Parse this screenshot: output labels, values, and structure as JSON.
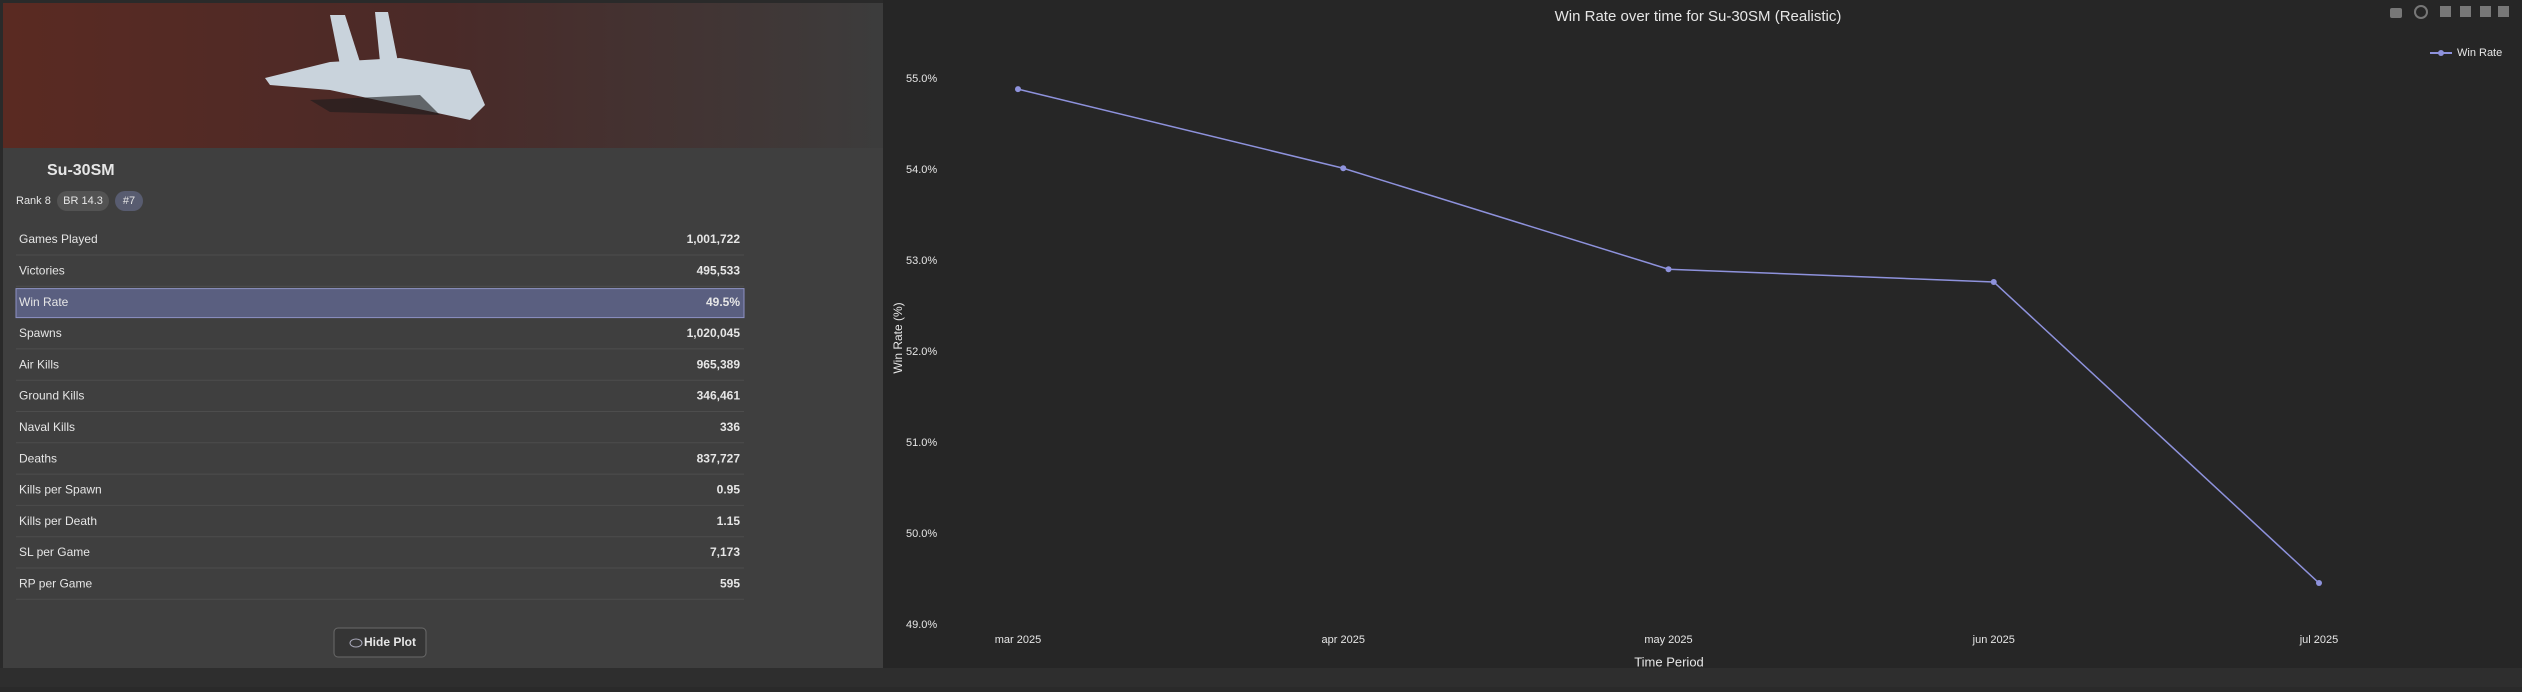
{
  "panel": {
    "vehicle_name": "Su-30SM",
    "rank": "Rank 8",
    "br": "BR 14.3",
    "tag": "#7",
    "stats": [
      {
        "label": "Games Played",
        "value": "1,001,722"
      },
      {
        "label": "Victories",
        "value": "495,533"
      },
      {
        "label": "Win Rate",
        "value": "49.5%",
        "highlighted": true
      },
      {
        "label": "Spawns",
        "value": "1,020,045"
      },
      {
        "label": "Air Kills",
        "value": "965,389"
      },
      {
        "label": "Ground Kills",
        "value": "346,461"
      },
      {
        "label": "Naval Kills",
        "value": "336"
      },
      {
        "label": "Deaths",
        "value": "837,727"
      },
      {
        "label": "Kills per Spawn",
        "value": "0.95"
      },
      {
        "label": "Kills per Death",
        "value": "1.15"
      },
      {
        "label": "SL per Game",
        "value": "7,173"
      },
      {
        "label": "RP per Game",
        "value": "595"
      }
    ],
    "button": "Hide Plot"
  },
  "chart_data": {
    "type": "line",
    "title": "Win Rate over time for Su-30SM (Realistic)",
    "x_label": "Time Period",
    "y_label": "Win Rate (%)",
    "categories": [
      "mar 2025",
      "apr 2025",
      "may 2025",
      "jun 2025",
      "jul 2025"
    ],
    "series": [
      {
        "name": "Win Rate",
        "color": "#8e92dc",
        "values": [
          54.89,
          54.02,
          52.91,
          52.77,
          49.46
        ]
      }
    ],
    "ylim": [
      48.9,
      55.1
    ],
    "yticks": [
      {
        "value": 49,
        "label": "49.0%"
      },
      {
        "value": 50,
        "label": "50.0%"
      },
      {
        "value": 51,
        "label": "51.0%"
      },
      {
        "value": 52,
        "label": "52.0%"
      },
      {
        "value": 53,
        "label": "53.0%"
      },
      {
        "value": 54,
        "label": "54.0%"
      },
      {
        "value": 55,
        "label": "55.0%"
      }
    ],
    "grid": false,
    "legend": "upper right"
  }
}
